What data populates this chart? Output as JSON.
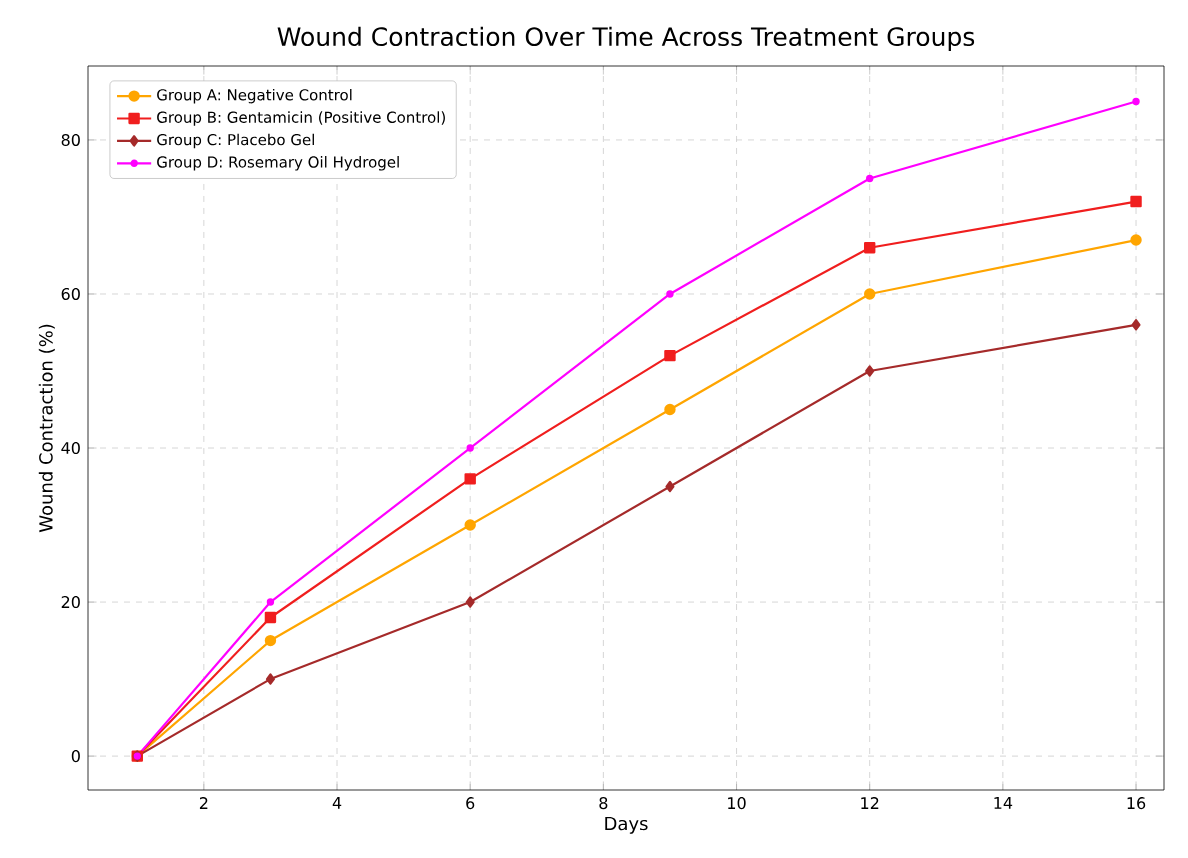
{
  "chart_data": {
    "type": "line",
    "title": "Wound Contraction Over Time Across Treatment Groups",
    "xlabel": "Days",
    "ylabel": "Wound Contraction (%)",
    "x": [
      1,
      3,
      6,
      9,
      12,
      16
    ],
    "series": [
      {
        "name": "Group A: Negative Control",
        "color": "#ffa500",
        "marker": "circle",
        "values": [
          0,
          15,
          30,
          45,
          60,
          67
        ]
      },
      {
        "name": "Group B: Gentamicin (Positive Control)",
        "color": "#f01e1e",
        "marker": "square",
        "values": [
          0,
          18,
          36,
          52,
          66,
          72
        ]
      },
      {
        "name": "Group C: Placebo Gel",
        "color": "#a52a2a",
        "marker": "diamond",
        "values": [
          0,
          10,
          20,
          35,
          50,
          56
        ]
      },
      {
        "name": "Group D: Rosemary Oil Hydrogel",
        "color": "#ff00ff",
        "marker": "point",
        "values": [
          0,
          20,
          40,
          60,
          75,
          85
        ]
      }
    ],
    "xlim": [
      0.26,
      16.42
    ],
    "ylim": [
      -4.4,
      89.6
    ],
    "xticks": [
      2,
      4,
      6,
      8,
      10,
      12,
      14,
      16
    ],
    "yticks": [
      0,
      20,
      40,
      60,
      80
    ],
    "grid": true,
    "legend": "top left",
    "line_style": "solid"
  }
}
